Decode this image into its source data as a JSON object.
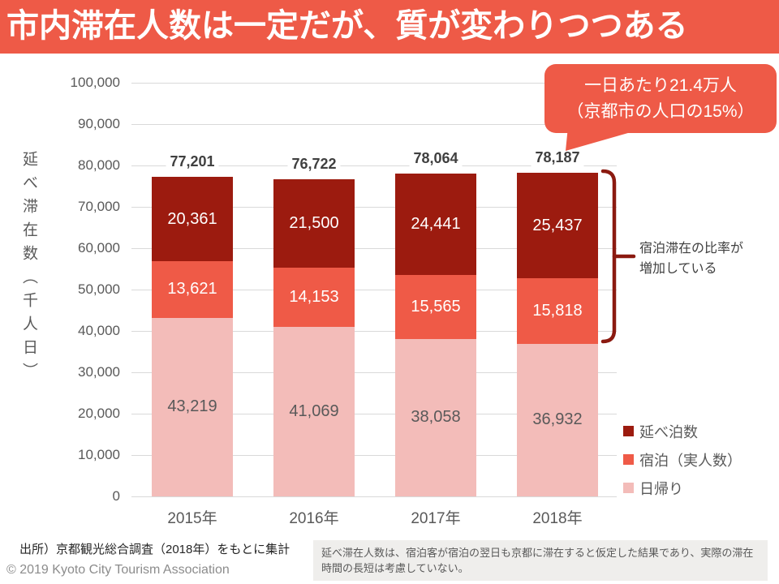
{
  "title": "市内滞在人数は一定だが、質が変わりつつある",
  "callout": {
    "line1": "一日あたり21.4万人",
    "line2": "（京都市の人口の15%）"
  },
  "annotation": {
    "line1": "宿泊滞在の比率が",
    "line2": "増加している"
  },
  "chart_data": {
    "type": "bar",
    "stacked": true,
    "ylabel": "延べ滞在数（千人日）",
    "ylim": [
      0,
      100000
    ],
    "yticks": [
      "100,000",
      "90,000",
      "80,000",
      "70,000",
      "60,000",
      "50,000",
      "40,000",
      "30,000",
      "20,000",
      "10,000",
      "0"
    ],
    "categories": [
      "2015年",
      "2016年",
      "2017年",
      "2018年"
    ],
    "series": [
      {
        "name": "日帰り",
        "color": "#F3BCB9",
        "label_color": "#595959",
        "values": [
          43219,
          41069,
          38058,
          36932
        ]
      },
      {
        "name": "宿泊（実人数）",
        "color": "#EF5A47",
        "label_color": "#FFFFFF",
        "values": [
          13621,
          14153,
          15565,
          15818
        ]
      },
      {
        "name": "延べ泊数",
        "color": "#9C1B0F",
        "label_color": "#FFFFFF",
        "values": [
          20361,
          21500,
          24441,
          25437
        ]
      }
    ],
    "totals": [
      "77,201",
      "76,722",
      "78,064",
      "78,187"
    ],
    "legend": [
      {
        "label": "延べ泊数",
        "color": "#9C1B0F"
      },
      {
        "label": "宿泊（実人数）",
        "color": "#EF5A47"
      },
      {
        "label": "日帰り",
        "color": "#F3BCB9"
      }
    ],
    "legend_position": "right-bottom",
    "grid": true
  },
  "footer": {
    "source": "出所）京都観光総合調査（2018年）をもとに集計",
    "copyright": "© 2019 Kyoto City Tourism Association",
    "note": "延べ滞在人数は、宿泊客が宿泊の翌日も京都に滞在すると仮定した結果であり、実際の滞在時間の長短は考慮していない。"
  },
  "colors": {
    "accent": "#EE5A47",
    "dark_red": "#9C1B0F",
    "pink": "#F3BCB9",
    "bracket": "#8B1A10",
    "grid": "#D9D9D9",
    "axis_text": "#595959",
    "total_text": "#3F3F3F",
    "note_bg": "#EFEEEC",
    "copyright": "#8C8C8C",
    "source_text": "#262626"
  }
}
